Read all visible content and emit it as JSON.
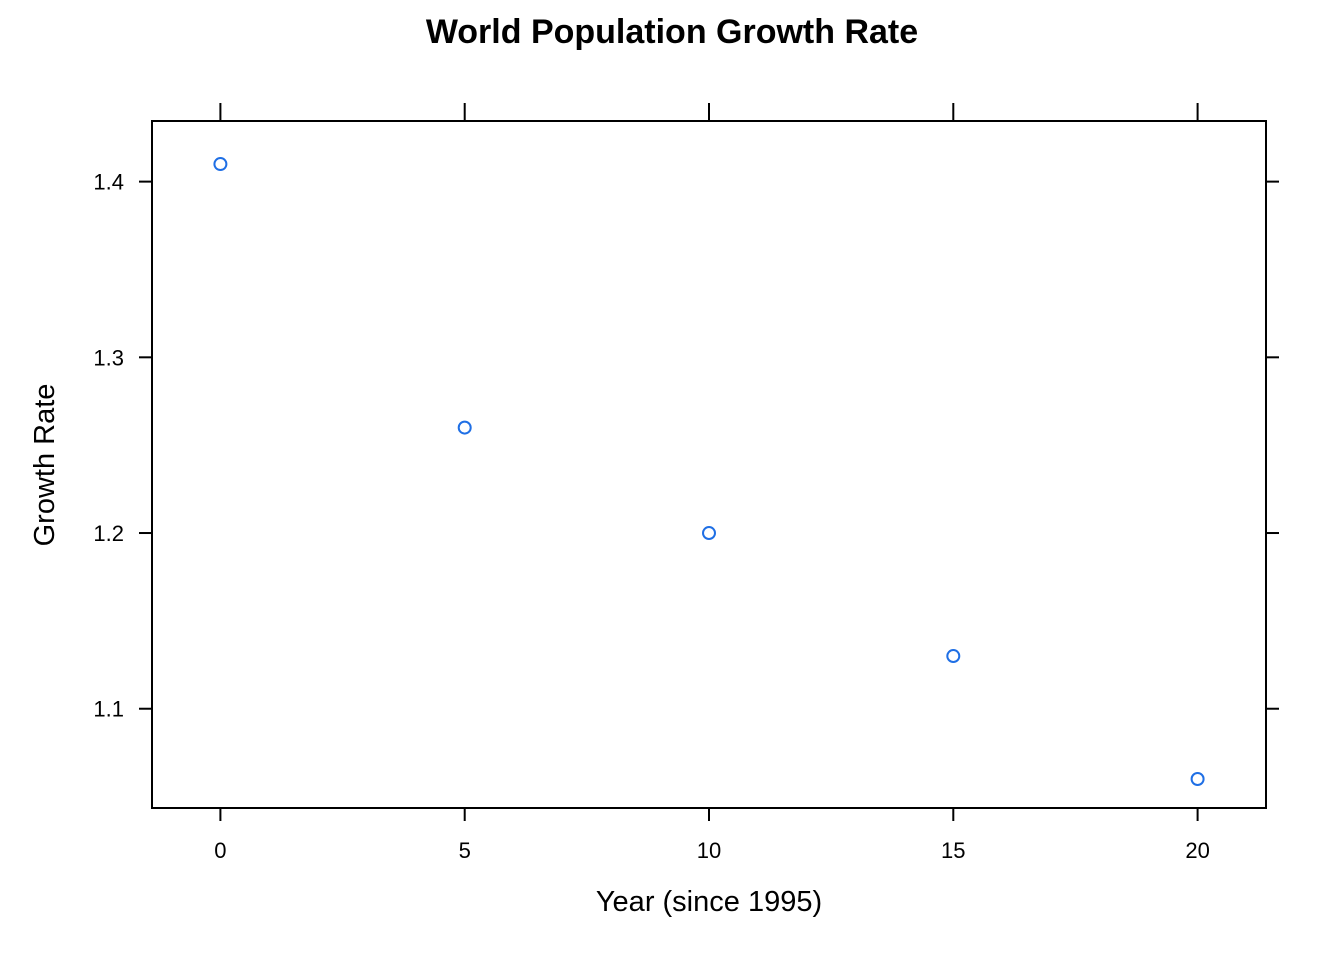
{
  "chart_data": {
    "type": "scatter",
    "title": "World Population Growth Rate",
    "xlabel": "Year (since 1995)",
    "ylabel": "Growth Rate",
    "x": [
      0,
      5,
      10,
      15,
      20
    ],
    "y": [
      1.41,
      1.26,
      1.2,
      1.13,
      1.06
    ],
    "xlim": [
      -1.4,
      21.4
    ],
    "ylim": [
      1.0435,
      1.4345
    ],
    "x_ticks": [
      0,
      5,
      10,
      15,
      20
    ],
    "x_tick_labels": [
      "0",
      "5",
      "10",
      "15",
      "20"
    ],
    "y_ticks": [
      1.1,
      1.2,
      1.3,
      1.4
    ],
    "y_tick_labels": [
      "1.1",
      "1.2",
      "1.3",
      "1.4"
    ],
    "grid": false,
    "legend": "none",
    "marker": "open-circle",
    "marker_color": "#1f6fe5",
    "axis_color": "#000000"
  }
}
